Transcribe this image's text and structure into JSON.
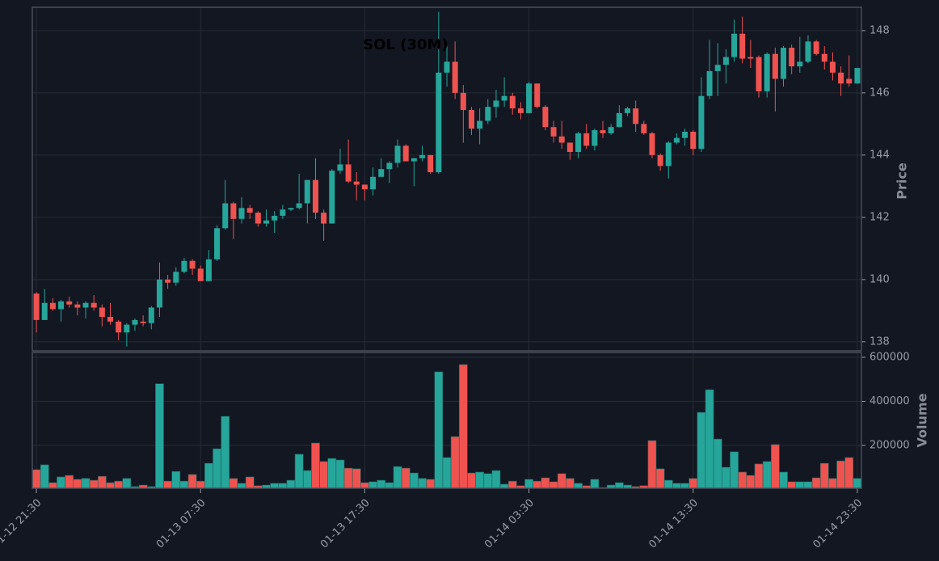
{
  "chart_data": [
    {
      "type": "candlestick",
      "title": "SOL (30M)",
      "ylabel": "Price",
      "categories": [
        "01-12 21:30",
        null,
        null,
        null,
        null,
        null,
        null,
        null,
        null,
        null,
        null,
        null,
        null,
        null,
        null,
        null,
        null,
        null,
        null,
        null,
        "01-13 07:30",
        null,
        null,
        null,
        null,
        null,
        null,
        null,
        null,
        null,
        null,
        null,
        null,
        null,
        null,
        null,
        null,
        null,
        null,
        null,
        "01-13 17:30",
        null,
        null,
        null,
        null,
        null,
        null,
        null,
        null,
        null,
        null,
        null,
        null,
        null,
        null,
        null,
        null,
        null,
        null,
        null,
        "01-14 03:30",
        null,
        null,
        null,
        null,
        null,
        null,
        null,
        null,
        null,
        null,
        null,
        null,
        null,
        null,
        null,
        null,
        null,
        null,
        null,
        "01-14 13:30",
        null,
        null,
        null,
        null,
        null,
        null,
        null,
        null,
        null,
        null,
        null,
        null,
        null,
        null,
        null,
        null,
        null,
        null,
        null,
        "01-14 23:30"
      ],
      "open": [
        139.55,
        138.7,
        139.25,
        139.05,
        139.3,
        139.2,
        139.1,
        139.25,
        139.1,
        138.8,
        138.65,
        138.3,
        138.55,
        138.65,
        138.6,
        139.1,
        140.0,
        139.9,
        140.25,
        140.6,
        140.35,
        139.95,
        140.65,
        141.65,
        142.45,
        141.95,
        142.3,
        142.15,
        141.8,
        141.9,
        142.05,
        142.25,
        142.3,
        142.45,
        143.2,
        142.15,
        141.8,
        143.5,
        143.7,
        143.15,
        143.05,
        142.9,
        143.3,
        143.55,
        143.75,
        144.3,
        143.8,
        143.9,
        144.0,
        143.45,
        146.65,
        147.0,
        146.0,
        145.45,
        144.85,
        145.1,
        145.55,
        145.75,
        145.9,
        145.5,
        145.35,
        146.3,
        145.55,
        144.9,
        144.6,
        144.4,
        144.1,
        144.7,
        144.3,
        144.8,
        144.7,
        144.9,
        145.35,
        145.5,
        145.0,
        144.7,
        144.0,
        143.65,
        144.4,
        144.55,
        144.75,
        144.2,
        145.9,
        146.7,
        146.9,
        147.15,
        147.9,
        147.15,
        147.15,
        146.05,
        147.25,
        146.45,
        147.45,
        146.85,
        147.0,
        147.65,
        147.25,
        147.0,
        146.65,
        146.45,
        146.3
      ],
      "high": [
        139.6,
        139.7,
        139.4,
        139.35,
        139.45,
        139.3,
        139.3,
        139.5,
        139.2,
        139.25,
        138.7,
        138.6,
        138.75,
        138.85,
        139.15,
        140.55,
        140.15,
        140.4,
        140.7,
        140.65,
        140.45,
        140.95,
        141.75,
        143.2,
        142.5,
        142.65,
        142.4,
        142.2,
        142.25,
        142.2,
        142.4,
        142.3,
        143.4,
        143.2,
        143.9,
        142.25,
        143.55,
        144.2,
        144.5,
        143.45,
        143.05,
        143.6,
        143.9,
        143.8,
        144.5,
        144.35,
        143.9,
        144.3,
        144.0,
        148.6,
        147.5,
        147.65,
        146.25,
        145.55,
        145.5,
        145.8,
        146.1,
        146.5,
        146.0,
        145.7,
        146.35,
        146.3,
        145.6,
        145.1,
        145.1,
        144.4,
        144.75,
        145.0,
        144.85,
        145.1,
        145.0,
        145.6,
        145.55,
        145.75,
        145.1,
        144.75,
        144.05,
        144.45,
        144.7,
        144.85,
        144.8,
        146.5,
        147.7,
        147.6,
        147.4,
        148.35,
        148.45,
        147.7,
        147.2,
        147.3,
        147.45,
        147.5,
        147.55,
        147.8,
        147.85,
        147.7,
        147.5,
        147.3,
        146.85,
        147.2,
        146.8
      ],
      "low": [
        138.3,
        138.7,
        139.0,
        138.65,
        139.1,
        138.85,
        138.75,
        139.0,
        138.5,
        138.55,
        138.05,
        137.85,
        138.35,
        138.5,
        138.4,
        138.8,
        139.7,
        139.8,
        140.2,
        140.15,
        139.95,
        139.95,
        140.6,
        141.6,
        141.3,
        141.8,
        141.95,
        141.7,
        141.7,
        141.5,
        141.95,
        142.2,
        142.25,
        141.8,
        141.95,
        141.25,
        141.8,
        143.4,
        143.1,
        142.55,
        142.55,
        142.7,
        143.3,
        143.1,
        143.6,
        143.8,
        143.0,
        143.8,
        143.4,
        143.4,
        146.2,
        145.8,
        144.4,
        144.65,
        144.35,
        145.0,
        145.2,
        145.55,
        145.3,
        145.15,
        145.35,
        145.5,
        144.8,
        144.4,
        144.2,
        143.85,
        143.9,
        144.2,
        144.15,
        144.55,
        144.65,
        144.9,
        145.25,
        144.75,
        144.65,
        143.9,
        143.5,
        143.25,
        144.35,
        144.3,
        144.0,
        144.1,
        145.8,
        145.9,
        146.3,
        147.0,
        146.95,
        146.8,
        145.85,
        145.85,
        145.4,
        146.2,
        146.6,
        146.65,
        146.95,
        147.2,
        146.75,
        146.4,
        145.9,
        146.2,
        146.3
      ],
      "close": [
        138.7,
        139.25,
        139.05,
        139.3,
        139.2,
        139.1,
        139.25,
        139.1,
        138.8,
        138.65,
        138.3,
        138.55,
        138.7,
        138.6,
        139.1,
        140.0,
        139.9,
        140.25,
        140.6,
        140.35,
        139.95,
        140.65,
        141.65,
        142.45,
        141.95,
        142.3,
        142.15,
        141.8,
        141.9,
        142.05,
        142.25,
        142.3,
        142.45,
        143.2,
        142.15,
        141.8,
        143.5,
        143.7,
        143.15,
        143.05,
        142.9,
        143.3,
        143.55,
        143.75,
        144.3,
        143.8,
        143.9,
        144.0,
        143.45,
        146.65,
        147.0,
        146.0,
        145.45,
        144.85,
        145.1,
        145.55,
        145.75,
        145.9,
        145.5,
        145.35,
        146.3,
        145.55,
        144.9,
        144.6,
        144.4,
        144.1,
        144.7,
        144.3,
        144.8,
        144.7,
        144.9,
        145.35,
        145.5,
        145.0,
        144.7,
        144.0,
        143.65,
        144.4,
        144.55,
        144.75,
        144.2,
        145.9,
        146.7,
        146.9,
        147.15,
        147.9,
        147.1,
        147.1,
        146.05,
        147.25,
        146.45,
        147.45,
        146.85,
        147.0,
        147.65,
        147.25,
        147.0,
        146.65,
        146.3,
        146.3,
        146.8
      ],
      "up_color": "#26a69a",
      "down_color": "#ef5350",
      "ylim": [
        137.71,
        148.75
      ],
      "yticks": [
        138,
        140,
        142,
        144,
        146,
        148
      ],
      "grid": true
    },
    {
      "type": "bar",
      "ylabel": "Volume",
      "values": [
        90000,
        112000,
        31000,
        57000,
        64000,
        46000,
        50000,
        42000,
        60000,
        31000,
        38000,
        50000,
        13000,
        20000,
        13000,
        480000,
        38000,
        82000,
        38000,
        68000,
        38000,
        119000,
        185000,
        332000,
        50000,
        28000,
        57000,
        17000,
        20000,
        28000,
        28000,
        42000,
        160000,
        86000,
        211000,
        127000,
        141000,
        134000,
        97000,
        94000,
        31000,
        35000,
        42000,
        31000,
        104000,
        97000,
        75000,
        50000,
        46000,
        534000,
        145000,
        240000,
        567000,
        75000,
        79000,
        72000,
        86000,
        24000,
        38000,
        17000,
        46000,
        38000,
        53000,
        35000,
        72000,
        50000,
        28000,
        17000,
        46000,
        9000,
        20000,
        31000,
        20000,
        13000,
        17000,
        222000,
        94000,
        42000,
        28000,
        28000,
        50000,
        350000,
        453000,
        229000,
        101000,
        171000,
        79000,
        64000,
        116000,
        127000,
        204000,
        79000,
        35000,
        35000,
        35000,
        53000,
        119000,
        50000,
        130000,
        145000,
        50000
      ],
      "ylim": [
        5500,
        622000
      ],
      "yticks": [
        200000,
        400000,
        600000
      ],
      "grid": true
    }
  ]
}
